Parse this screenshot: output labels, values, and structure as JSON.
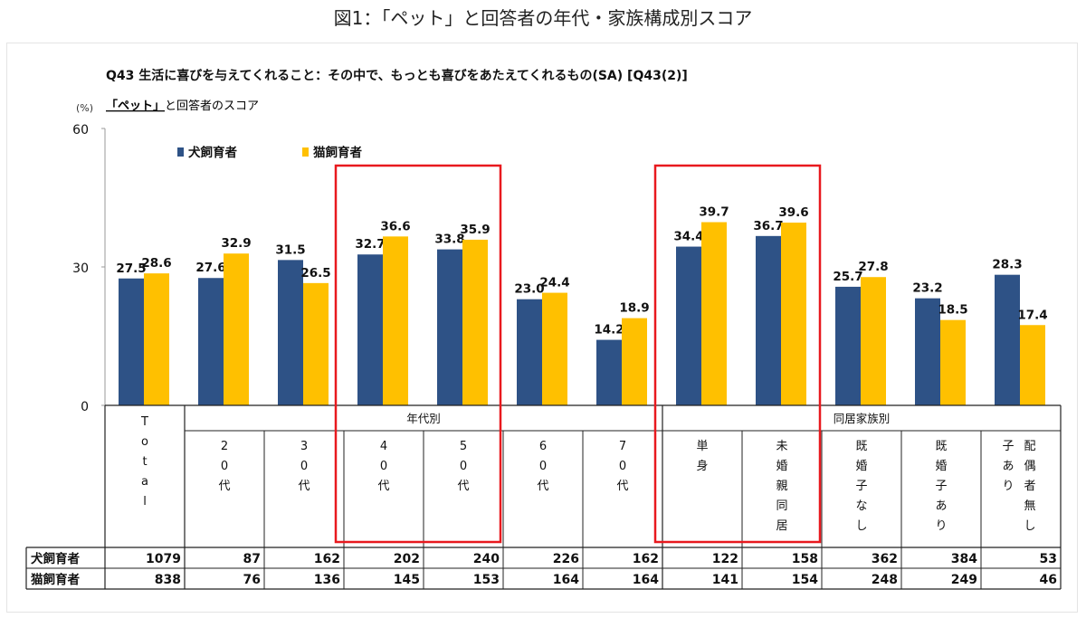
{
  "page_title": "図1：「ペット」と回答者の年代・家族構成別スコア",
  "question": "Q43 生活に喜びを与えてくれること：その中で、もっとも喜びをあたえてくれるもの(SA) [Q43(2)]",
  "subtitle_bold": "「ペット」",
  "subtitle_rest": "と回答者のスコア",
  "unit": "(%)",
  "colors": {
    "dog": "#2E5286",
    "cat": "#FFC000",
    "highlight": "#E8191E"
  },
  "group_labels": {
    "age": "年代別",
    "family": "同居家族別"
  },
  "chart_data": {
    "type": "bar",
    "ylabel": "(%)",
    "ylim": [
      0,
      60
    ],
    "yticks": [
      0,
      30,
      60
    ],
    "categories": [
      "Total",
      "20代",
      "30代",
      "40代",
      "50代",
      "60代",
      "70代",
      "単身",
      "未婚親同居",
      "既婚子なし",
      "既婚子あり",
      "配偶者無し子あり"
    ],
    "category_labels": [
      [
        "T",
        "o",
        "t",
        "a",
        "l"
      ],
      [
        "2",
        "0",
        "代"
      ],
      [
        "3",
        "0",
        "代"
      ],
      [
        "4",
        "0",
        "代"
      ],
      [
        "5",
        "0",
        "代"
      ],
      [
        "6",
        "0",
        "代"
      ],
      [
        "7",
        "0",
        "代"
      ],
      [
        "単",
        "身"
      ],
      [
        "未",
        "婚",
        "親",
        "同",
        "居"
      ],
      [
        "既",
        "婚",
        "子",
        "な",
        "し"
      ],
      [
        "既",
        "婚",
        "子",
        "あ",
        "り"
      ],
      [
        "配",
        "偶",
        "者",
        "無",
        "し"
      ]
    ],
    "extra_label_column": [
      "子",
      "あ",
      "り"
    ],
    "series": [
      {
        "name": "犬飼育者",
        "values": [
          27.5,
          27.6,
          31.5,
          32.7,
          33.8,
          23.0,
          14.2,
          34.4,
          36.7,
          25.7,
          23.2,
          28.3
        ],
        "labels": [
          "27.5",
          "27.6",
          "31.5",
          "32.7",
          "33.8",
          "23.0",
          "14.2",
          "34.4",
          "36.7",
          "25.7",
          "23.2",
          "28.3"
        ]
      },
      {
        "name": "猫飼育者",
        "values": [
          28.6,
          32.9,
          26.5,
          36.6,
          35.9,
          24.4,
          18.9,
          39.7,
          39.6,
          27.8,
          18.5,
          17.4
        ],
        "labels": [
          "28.6",
          "32.9",
          "26.5",
          "36.6",
          "35.9",
          "24.4",
          "18.9",
          "39.7",
          "39.6",
          "27.8",
          "18.5",
          "17.4"
        ]
      }
    ],
    "counts": [
      {
        "name": "犬飼育者",
        "values": [
          "1079",
          "87",
          "162",
          "202",
          "240",
          "226",
          "162",
          "122",
          "158",
          "362",
          "384",
          "53"
        ]
      },
      {
        "name": "猫飼育者",
        "values": [
          "838",
          "76",
          "136",
          "145",
          "153",
          "164",
          "164",
          "141",
          "154",
          "248",
          "249",
          "46"
        ]
      }
    ],
    "grid": false,
    "legend": "top-left"
  }
}
